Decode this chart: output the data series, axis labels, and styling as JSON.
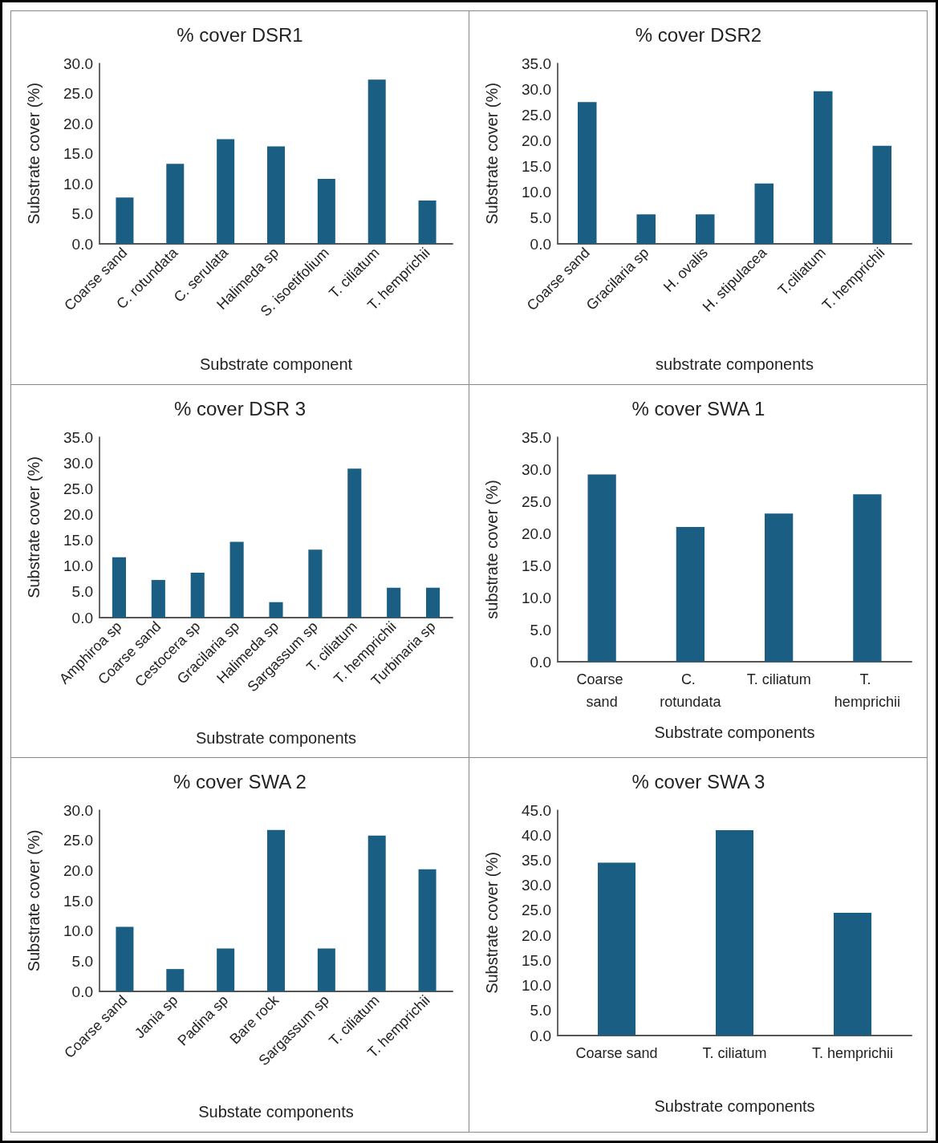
{
  "chart_data": [
    {
      "type": "bar",
      "title": "% cover DSR1",
      "xlabel": "Substrate component",
      "ylabel": "Substrate cover (%)",
      "categories": [
        "Coarse sand",
        "C. rotundata",
        "C. serulata",
        "Halimeda sp",
        "S. isoetifolium",
        "T. ciliatum",
        "T. hemprichii"
      ],
      "values": [
        7.7,
        13.3,
        17.4,
        16.2,
        10.8,
        27.3,
        7.2
      ],
      "color": "#1b5e83",
      "ylim": [
        0,
        30
      ],
      "yticks": [
        {
          "value": 0,
          "label": "0.0"
        },
        {
          "value": 5,
          "label": "5.0"
        },
        {
          "value": 10,
          "label": "10.0"
        },
        {
          "value": 15,
          "label": "15.0"
        },
        {
          "value": 20,
          "label": "20.0"
        },
        {
          "value": 25,
          "label": "25.0"
        },
        {
          "value": 30,
          "label": "30.0"
        }
      ],
      "grid": false
    },
    {
      "type": "bar",
      "title": "% cover DSR2",
      "xlabel": "substrate components",
      "ylabel": "Substrate cover (%)",
      "categories": [
        "Coarse sand",
        "Gracilaria sp",
        "H. ovalis",
        "H. stipulacea",
        "T.ciliatum",
        "T. hemprichii"
      ],
      "values": [
        27.5,
        5.7,
        5.7,
        11.7,
        29.6,
        19.0
      ],
      "color": "#1b5e83",
      "ylim": [
        0,
        35
      ],
      "yticks": [
        {
          "value": 0,
          "label": "0.0"
        },
        {
          "value": 5,
          "label": "5.0"
        },
        {
          "value": 10,
          "label": "10.0"
        },
        {
          "value": 15,
          "label": "15.0"
        },
        {
          "value": 20,
          "label": "20.0"
        },
        {
          "value": 25,
          "label": "25.0"
        },
        {
          "value": 30,
          "label": "30.0"
        },
        {
          "value": 35,
          "label": "35.0"
        }
      ],
      "grid": false
    },
    {
      "type": "bar",
      "title": "% cover DSR 3",
      "xlabel": "Substrate components",
      "ylabel": "Substrate cover (%)",
      "categories": [
        "Amphiroa sp",
        "Coarse sand",
        "Cestocera sp",
        "Gracilaria sp",
        "Halimeda sp",
        "Sargassum sp",
        "T. ciliatum",
        "T. hemprichii",
        "Turbinaria sp"
      ],
      "values": [
        11.7,
        7.3,
        8.7,
        14.7,
        3.0,
        13.2,
        28.9,
        5.8,
        5.8
      ],
      "color": "#1b5e83",
      "ylim": [
        0,
        35
      ],
      "yticks": [
        {
          "value": 0,
          "label": "0.0"
        },
        {
          "value": 5,
          "label": "5.0"
        },
        {
          "value": 10,
          "label": "10.0"
        },
        {
          "value": 15,
          "label": "15.0"
        },
        {
          "value": 20,
          "label": "20.0"
        },
        {
          "value": 25,
          "label": "25.0"
        },
        {
          "value": 30,
          "label": "30.0"
        },
        {
          "value": 35,
          "label": "35.0"
        }
      ],
      "grid": false
    },
    {
      "type": "bar",
      "title": "% cover SWA 1",
      "xlabel": "Substrate components",
      "ylabel": "substrate cover (%)",
      "categories": [
        "Coarse sand",
        "C. rotundata",
        "T. ciliatum",
        "T. hemprichii"
      ],
      "values": [
        29.2,
        21.0,
        23.1,
        26.1
      ],
      "color": "#1b5e83",
      "ylim": [
        0,
        35
      ],
      "yticks": [
        {
          "value": 0,
          "label": "0.0"
        },
        {
          "value": 5,
          "label": "5.0"
        },
        {
          "value": 10,
          "label": "10.0"
        },
        {
          "value": 15,
          "label": "15.0"
        },
        {
          "value": 20,
          "label": "20.0"
        },
        {
          "value": 25,
          "label": "25.0"
        },
        {
          "value": 30,
          "label": "30.0"
        },
        {
          "value": 35,
          "label": "35.0"
        }
      ],
      "grid": false
    },
    {
      "type": "bar",
      "title": "% cover SWA 2",
      "xlabel": "Substate components",
      "ylabel": "Substrate cover (%)",
      "categories": [
        "Coarse sand",
        "Jania sp",
        "Padina sp",
        "Bare rock",
        "Sargassum sp",
        "T. ciliatum",
        "T. hemprichii"
      ],
      "values": [
        10.7,
        3.7,
        7.1,
        26.7,
        7.1,
        25.8,
        20.2
      ],
      "color": "#1b5e83",
      "ylim": [
        0,
        30
      ],
      "yticks": [
        {
          "value": 0,
          "label": "0.0"
        },
        {
          "value": 5,
          "label": "5.0"
        },
        {
          "value": 10,
          "label": "10.0"
        },
        {
          "value": 15,
          "label": "15.0"
        },
        {
          "value": 20,
          "label": "20.0"
        },
        {
          "value": 25,
          "label": "25.0"
        },
        {
          "value": 30,
          "label": "30.0"
        }
      ],
      "grid": false
    },
    {
      "type": "bar",
      "title": "% cover SWA 3",
      "xlabel": "Substrate components",
      "ylabel": "Substrate cover (%)",
      "categories": [
        "Coarse sand",
        "T. ciliatum",
        "T. hemprichii"
      ],
      "values": [
        34.5,
        41.0,
        24.5
      ],
      "color": "#1b5e83",
      "ylim": [
        0,
        45
      ],
      "yticks": [
        {
          "value": 0,
          "label": "0.0"
        },
        {
          "value": 5,
          "label": "5.0"
        },
        {
          "value": 10,
          "label": "10.0"
        },
        {
          "value": 15,
          "label": "15.0"
        },
        {
          "value": 20,
          "label": "20.0"
        },
        {
          "value": 25,
          "label": "25.0"
        },
        {
          "value": 30,
          "label": "30.0"
        },
        {
          "value": 35,
          "label": "35.0"
        },
        {
          "value": 40,
          "label": "40.0"
        },
        {
          "value": 45,
          "label": "45.0"
        }
      ],
      "grid": false
    }
  ]
}
